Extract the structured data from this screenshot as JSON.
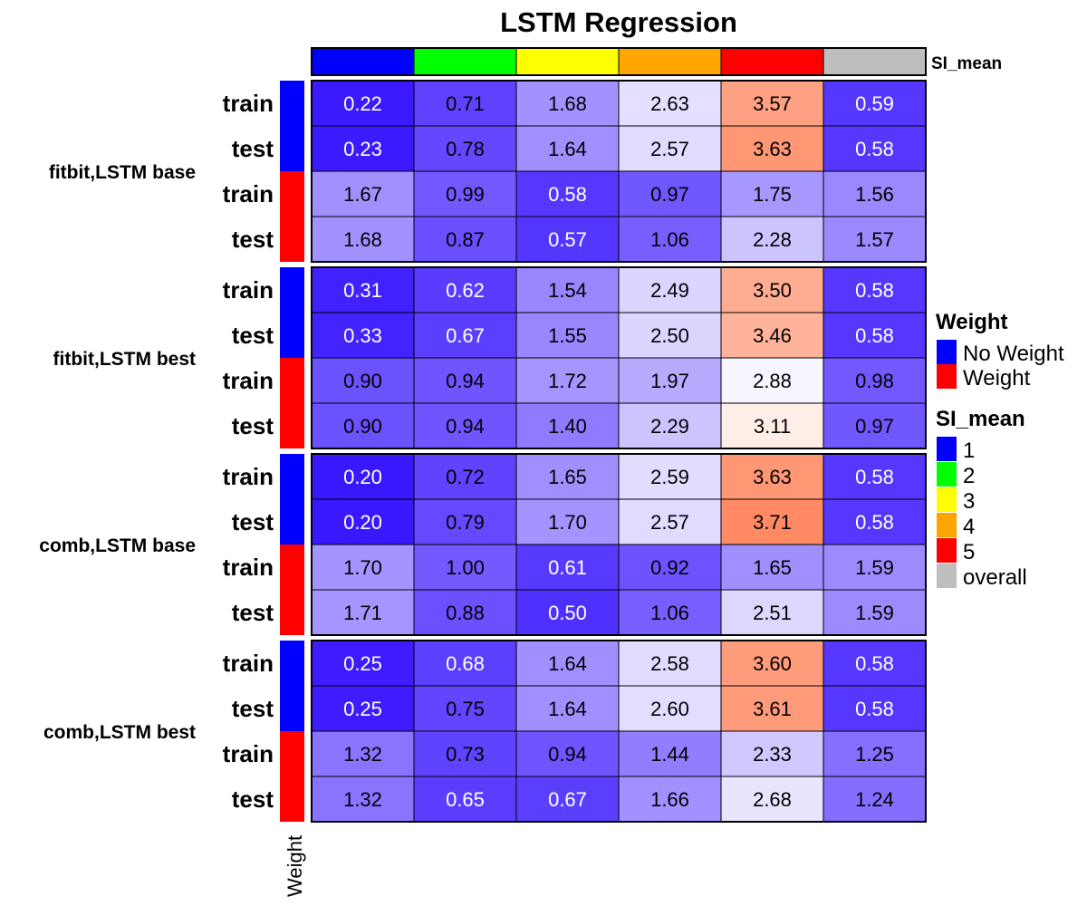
{
  "chart_data": {
    "type": "heatmap",
    "title": "LSTM Regression",
    "column_annotation": {
      "name": "SI_mean",
      "values": [
        "1",
        "2",
        "3",
        "4",
        "5",
        "overall"
      ]
    },
    "row_annotation": {
      "name": "Weight"
    },
    "groups": [
      {
        "label": "fitbit,LSTM base",
        "rows": [
          {
            "label": "train",
            "weight": "No Weight",
            "values": [
              "0.22",
              "0.71",
              "1.68",
              "2.63",
              "3.57",
              "0.59"
            ]
          },
          {
            "label": "test",
            "weight": "No Weight",
            "values": [
              "0.23",
              "0.78",
              "1.64",
              "2.57",
              "3.63",
              "0.58"
            ]
          },
          {
            "label": "train",
            "weight": "Weight",
            "values": [
              "1.67",
              "0.99",
              "0.58",
              "0.97",
              "1.75",
              "1.56"
            ]
          },
          {
            "label": "test",
            "weight": "Weight",
            "values": [
              "1.68",
              "0.87",
              "0.57",
              "1.06",
              "2.28",
              "1.57"
            ]
          }
        ]
      },
      {
        "label": "fitbit,LSTM best",
        "rows": [
          {
            "label": "train",
            "weight": "No Weight",
            "values": [
              "0.31",
              "0.62",
              "1.54",
              "2.49",
              "3.50",
              "0.58"
            ]
          },
          {
            "label": "test",
            "weight": "No Weight",
            "values": [
              "0.33",
              "0.67",
              "1.55",
              "2.50",
              "3.46",
              "0.58"
            ]
          },
          {
            "label": "train",
            "weight": "Weight",
            "values": [
              "0.90",
              "0.94",
              "1.72",
              "1.97",
              "2.88",
              "0.98"
            ]
          },
          {
            "label": "test",
            "weight": "Weight",
            "values": [
              "0.90",
              "0.94",
              "1.40",
              "2.29",
              "3.11",
              "0.97"
            ]
          }
        ]
      },
      {
        "label": "comb,LSTM base",
        "rows": [
          {
            "label": "train",
            "weight": "No Weight",
            "values": [
              "0.20",
              "0.72",
              "1.65",
              "2.59",
              "3.63",
              "0.58"
            ]
          },
          {
            "label": "test",
            "weight": "No Weight",
            "values": [
              "0.20",
              "0.79",
              "1.70",
              "2.57",
              "3.71",
              "0.58"
            ]
          },
          {
            "label": "train",
            "weight": "Weight",
            "values": [
              "1.70",
              "1.00",
              "0.61",
              "0.92",
              "1.65",
              "1.59"
            ]
          },
          {
            "label": "test",
            "weight": "Weight",
            "values": [
              "1.71",
              "0.88",
              "0.50",
              "1.06",
              "2.51",
              "1.59"
            ]
          }
        ]
      },
      {
        "label": "comb,LSTM best",
        "rows": [
          {
            "label": "train",
            "weight": "No Weight",
            "values": [
              "0.25",
              "0.68",
              "1.64",
              "2.58",
              "3.60",
              "0.58"
            ]
          },
          {
            "label": "test",
            "weight": "No Weight",
            "values": [
              "0.25",
              "0.75",
              "1.64",
              "2.60",
              "3.61",
              "0.58"
            ]
          },
          {
            "label": "train",
            "weight": "Weight",
            "values": [
              "1.32",
              "0.73",
              "0.94",
              "1.44",
              "2.33",
              "1.25"
            ]
          },
          {
            "label": "test",
            "weight": "Weight",
            "values": [
              "1.32",
              "0.65",
              "0.67",
              "1.66",
              "2.68",
              "1.24"
            ]
          }
        ]
      }
    ],
    "color_scale": {
      "low": "#3a18ff",
      "mid": "#ffffff",
      "high": "#ff8a64",
      "min": 0.2,
      "mid_value": 3.0,
      "max": 3.71
    },
    "legends": [
      {
        "title": "Weight",
        "entries": [
          {
            "label": "No Weight",
            "color": "#0000ff"
          },
          {
            "label": "Weight",
            "color": "#ff0000"
          }
        ]
      },
      {
        "title": "SI_mean",
        "entries": [
          {
            "label": "1",
            "color": "#0000ff"
          },
          {
            "label": "2",
            "color": "#00ff00"
          },
          {
            "label": "3",
            "color": "#ffff00"
          },
          {
            "label": "4",
            "color": "#ffa500"
          },
          {
            "label": "5",
            "color": "#ff0000"
          },
          {
            "label": "overall",
            "color": "#bebebe"
          }
        ]
      }
    ],
    "annotation_colors": {
      "SI_mean": [
        "#0000ff",
        "#00ff00",
        "#ffff00",
        "#ffa500",
        "#ff0000",
        "#bebebe"
      ],
      "Weight": {
        "No Weight": "#0000ff",
        "Weight": "#ff0000"
      }
    }
  }
}
